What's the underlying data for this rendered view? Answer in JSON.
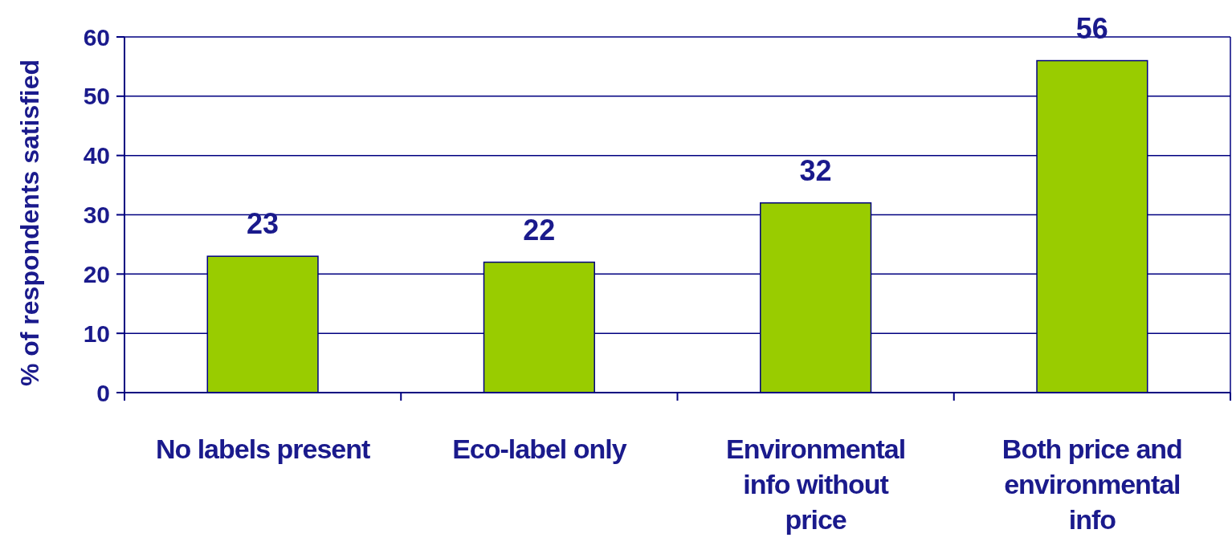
{
  "chart_data": {
    "type": "bar",
    "ylabel": "% of respondents satisfied",
    "categories": [
      "No labels present",
      "Eco-label only",
      "Environmental info without price",
      "Both price and environmental info"
    ],
    "values": [
      23,
      22,
      32,
      56
    ],
    "color": "#99cc00",
    "ylim": [
      0,
      60
    ],
    "yticks": [
      0,
      10,
      20,
      30,
      40,
      50,
      60
    ],
    "grid": "y",
    "data_labels": true
  }
}
